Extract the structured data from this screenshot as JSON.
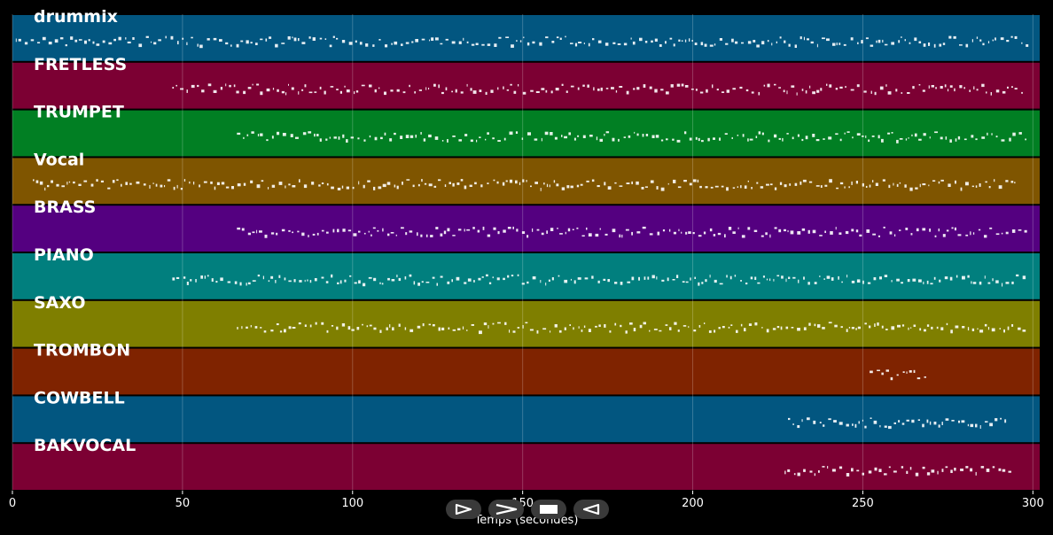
{
  "chart_data": {
    "type": "scatter",
    "xlabel": "Temps (secondes)",
    "xlim": [
      0,
      302
    ],
    "xticks": [
      0,
      50,
      100,
      150,
      200,
      250,
      300
    ],
    "grid": true,
    "tracks": [
      {
        "name": "drummix",
        "color": "#025680",
        "start": 1,
        "end": 298
      },
      {
        "name": "FRETLESS",
        "color": "#7c0033",
        "start": 47,
        "end": 298
      },
      {
        "name": "TRUMPET",
        "color": "#017f23",
        "start": 66,
        "end": 298
      },
      {
        "name": "Vocal",
        "color": "#7f5500",
        "start": 6,
        "end": 295
      },
      {
        "name": "BRASS",
        "color": "#540080",
        "start": 66,
        "end": 298
      },
      {
        "name": "PIANO",
        "color": "#017f7e",
        "start": 47,
        "end": 298
      },
      {
        "name": "SAXO",
        "color": "#7f7f00",
        "start": 66,
        "end": 298
      },
      {
        "name": "TROMBON",
        "color": "#7f2300",
        "start": 252,
        "end": 269
      },
      {
        "name": "COWBELL",
        "color": "#025680",
        "start": 228,
        "end": 293
      },
      {
        "name": "BAKVOCAL",
        "color": "#7c0033",
        "start": 227,
        "end": 294
      }
    ]
  },
  "controls": {
    "play_icon": "play-icon",
    "forward_icon": "forward-icon",
    "stop_icon": "stop-icon",
    "rewind_icon": "rewind-icon"
  }
}
